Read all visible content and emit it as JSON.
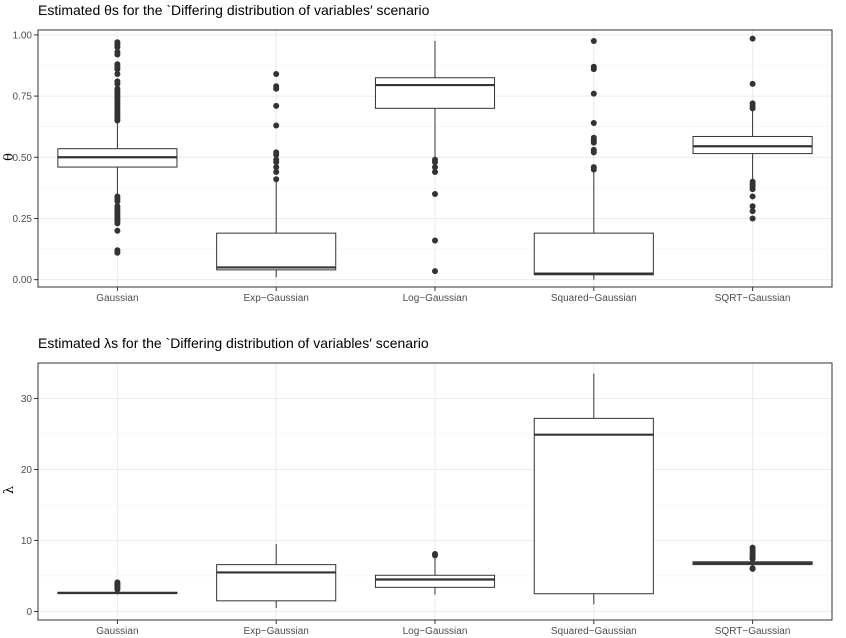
{
  "chart_data": [
    {
      "type": "boxplot",
      "title": "Estimated θs for the `Differing distribution of variables′ scenario",
      "xlabel": "",
      "ylabel": "θ",
      "ylim": [
        -0.03,
        1.02
      ],
      "yticks": [
        0.0,
        0.25,
        0.5,
        0.75,
        1.0
      ],
      "ytick_labels": [
        "0.00",
        "0.25",
        "0.50",
        "0.75",
        "1.00"
      ],
      "grid": true,
      "categories": [
        "Gaussian",
        "Exp−Gaussian",
        "Log−Gaussian",
        "Squared−Gaussian",
        "SQRT−Gaussian"
      ],
      "boxes": [
        {
          "whisker_low": 0.35,
          "q1": 0.46,
          "median": 0.5,
          "q3": 0.535,
          "whisker_high": 0.64,
          "outliers": [
            0.97,
            0.96,
            0.95,
            0.93,
            0.92,
            0.88,
            0.87,
            0.86,
            0.84,
            0.81,
            0.8,
            0.78,
            0.77,
            0.76,
            0.75,
            0.74,
            0.73,
            0.72,
            0.71,
            0.7,
            0.69,
            0.68,
            0.67,
            0.66,
            0.65,
            0.34,
            0.33,
            0.32,
            0.3,
            0.29,
            0.28,
            0.27,
            0.26,
            0.25,
            0.245,
            0.24,
            0.23,
            0.2,
            0.12,
            0.11
          ]
        },
        {
          "whisker_low": 0.01,
          "q1": 0.04,
          "median": 0.05,
          "q3": 0.19,
          "whisker_high": 0.4,
          "outliers": [
            0.84,
            0.79,
            0.78,
            0.71,
            0.63,
            0.52,
            0.51,
            0.49,
            0.48,
            0.46,
            0.44,
            0.41
          ]
        },
        {
          "whisker_low": 0.5,
          "q1": 0.7,
          "median": 0.795,
          "q3": 0.825,
          "whisker_high": 0.975,
          "outliers": [
            0.49,
            0.48,
            0.46,
            0.44,
            0.35,
            0.16,
            0.035
          ]
        },
        {
          "whisker_low": 0.0,
          "q1": 0.02,
          "median": 0.025,
          "q3": 0.19,
          "whisker_high": 0.45,
          "outliers": [
            0.975,
            0.87,
            0.86,
            0.76,
            0.64,
            0.58,
            0.57,
            0.56,
            0.53,
            0.52,
            0.46,
            0.45
          ]
        },
        {
          "whisker_low": 0.41,
          "q1": 0.515,
          "median": 0.545,
          "q3": 0.585,
          "whisker_high": 0.695,
          "outliers": [
            0.985,
            0.8,
            0.72,
            0.71,
            0.7,
            0.4,
            0.39,
            0.38,
            0.37,
            0.34,
            0.3,
            0.28,
            0.25
          ]
        }
      ]
    },
    {
      "type": "boxplot",
      "title": "Estimated λs for the `Differing distribution of variables′ scenario",
      "xlabel": "",
      "ylabel": "λ",
      "ylim": [
        -1.2,
        35
      ],
      "yticks": [
        0,
        10,
        20,
        30
      ],
      "ytick_labels": [
        "0",
        "10",
        "20",
        "30"
      ],
      "grid": true,
      "categories": [
        "Gaussian",
        "Exp−Gaussian",
        "Log−Gaussian",
        "Squared−Gaussian",
        "SQRT−Gaussian"
      ],
      "boxes": [
        {
          "whisker_low": 2.4,
          "q1": 2.55,
          "median": 2.6,
          "q3": 2.7,
          "whisker_high": 2.9,
          "outliers": [
            4.1,
            3.9,
            3.7,
            3.5,
            3.3,
            3.1
          ]
        },
        {
          "whisker_low": 0.5,
          "q1": 1.5,
          "median": 5.5,
          "q3": 6.6,
          "whisker_high": 9.5,
          "outliers": []
        },
        {
          "whisker_low": 2.4,
          "q1": 3.4,
          "median": 4.5,
          "q3": 5.1,
          "whisker_high": 7.5,
          "outliers": [
            8.1,
            7.9
          ]
        },
        {
          "whisker_low": 1.0,
          "q1": 2.5,
          "median": 24.9,
          "q3": 27.2,
          "whisker_high": 33.5,
          "outliers": []
        },
        {
          "whisker_low": 6.2,
          "q1": 6.6,
          "median": 6.8,
          "q3": 7.0,
          "whisker_high": 7.3,
          "outliers": [
            9.0,
            8.6,
            8.3,
            8.0,
            7.7,
            7.5,
            7.4,
            6.1,
            6.0
          ]
        }
      ]
    }
  ]
}
